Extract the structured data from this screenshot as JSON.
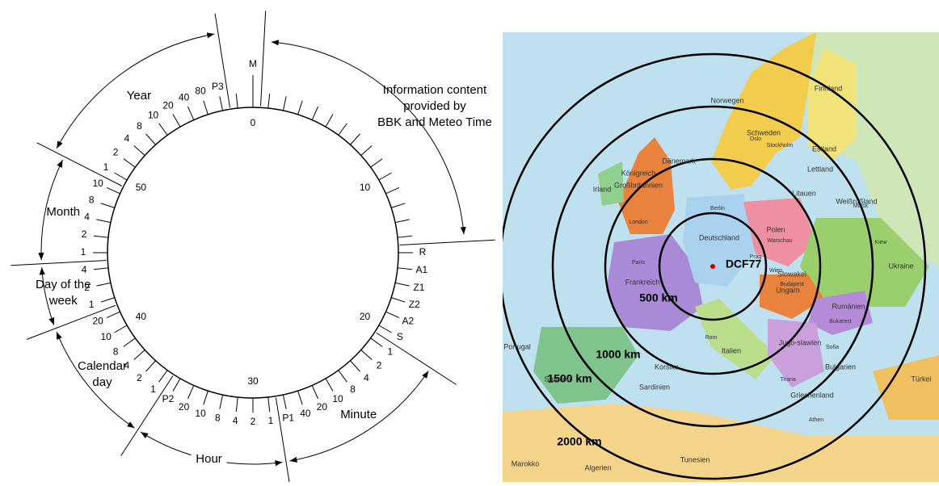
{
  "diagram": {
    "outer_labels": [
      "M",
      null,
      null,
      null,
      null,
      null,
      null,
      null,
      null,
      null,
      null,
      null,
      null,
      null,
      null,
      "R",
      "A1",
      "Z1",
      "Z2",
      "A2",
      "S",
      "1",
      "2",
      "4",
      "8",
      "10",
      "20",
      "40",
      "P1",
      "1",
      "2",
      "4",
      "8",
      "10",
      "20",
      "P2",
      "1",
      "2",
      "4",
      "8",
      "10",
      "20",
      "1",
      "2",
      "4",
      "1",
      "2",
      "4",
      "8",
      "10",
      "1",
      "2",
      "4",
      "8",
      "10",
      "20",
      "40",
      "80",
      "P3",
      null
    ],
    "inner_labels": [
      0,
      10,
      20,
      30,
      40,
      50
    ],
    "information": [
      "Information content",
      "provided by",
      "BBK and Meteo Time"
    ],
    "groups": [
      {
        "name": [
          "Minute"
        ]
      },
      {
        "name": [
          "Hour"
        ]
      },
      {
        "name": [
          "Calendar",
          "day"
        ]
      },
      {
        "name": [
          "Day of the",
          "week"
        ]
      },
      {
        "name": [
          "Month"
        ]
      },
      {
        "name": [
          "Year"
        ]
      }
    ]
  },
  "map": {
    "center_label": "DCF77",
    "rings": [
      "500 km",
      "1000 km",
      "1500 km",
      "2000 km"
    ],
    "places": [
      "Deutschland",
      "Frankreich",
      "Polen",
      "Ukraine",
      "Finnland",
      "Schweden",
      "Norwegen",
      "Italien",
      "Spanien",
      "Rumänien",
      "Ungarn",
      "Litauen",
      "Lettland",
      "Estland",
      "Weißrußland",
      "Slowakei",
      "Jugo-slawien",
      "Algerien",
      "Marokko",
      "Tunesien",
      "Türkei",
      "Königreich",
      "Großbritannien",
      "Irland",
      "Dänemark",
      "Griechenland",
      "Bulgarien",
      "Portugal",
      "Korsika",
      "Sardinien",
      "Berlin",
      "Warschau",
      "Paris",
      "Prag",
      "Wien",
      "Budapest",
      "Kiew",
      "Minsk",
      "London",
      "Oslo",
      "Stockholm",
      "Bukarest",
      "Sofia",
      "Tirana",
      "Athen",
      "Rom"
    ]
  }
}
